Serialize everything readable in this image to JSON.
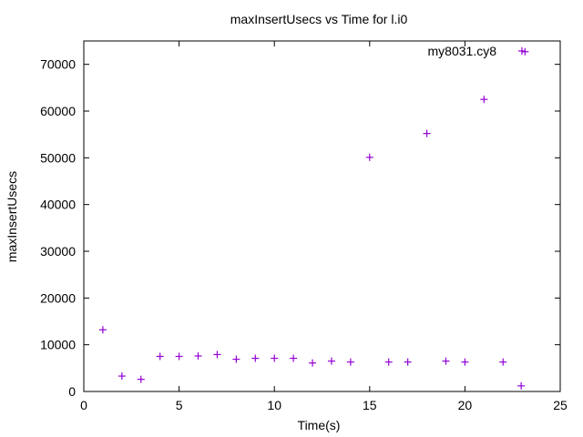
{
  "chart_data": {
    "type": "scatter",
    "title": "maxInsertUsecs vs Time for l.i0",
    "xlabel": "Time(s)",
    "ylabel": "maxInsertUsecs",
    "xlim": [
      0,
      25
    ],
    "ylim": [
      0,
      75000
    ],
    "x_ticks": [
      0,
      5,
      10,
      15,
      20,
      25
    ],
    "y_ticks": [
      0,
      10000,
      20000,
      30000,
      40000,
      50000,
      60000,
      70000
    ],
    "grid": false,
    "legend_position": "top-right",
    "series": [
      {
        "name": "my8031.cy8",
        "color": "#9400d3",
        "marker": "plus",
        "points": [
          [
            1,
            13200
          ],
          [
            2,
            3300
          ],
          [
            3,
            2600
          ],
          [
            4,
            7500
          ],
          [
            5,
            7500
          ],
          [
            6,
            7600
          ],
          [
            7,
            7900
          ],
          [
            8,
            6900
          ],
          [
            9,
            7100
          ],
          [
            10,
            7100
          ],
          [
            11,
            7100
          ],
          [
            12,
            6100
          ],
          [
            13,
            6500
          ],
          [
            14,
            6300
          ],
          [
            15,
            50100
          ],
          [
            16,
            6300
          ],
          [
            17,
            6300
          ],
          [
            18,
            55200
          ],
          [
            19,
            6500
          ],
          [
            20,
            6300
          ],
          [
            21,
            62500
          ],
          [
            22,
            6300
          ],
          [
            22.95,
            1200
          ],
          [
            23.15,
            72700
          ]
        ]
      }
    ]
  }
}
